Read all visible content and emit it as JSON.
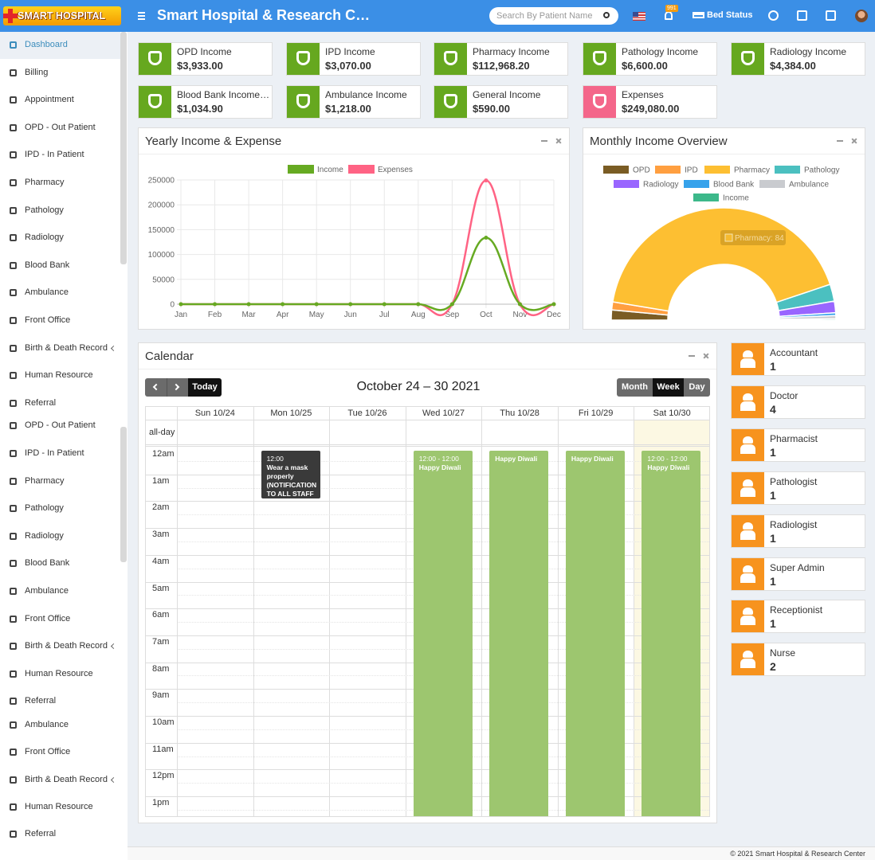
{
  "header": {
    "logo": "SMART HOSPITAL",
    "title": "Smart Hospital & Research Cen...",
    "search_placeholder": "Search By Patient Name",
    "notification_count": "991",
    "bed_status": "Bed Status"
  },
  "sidebar": {
    "active_item": 0,
    "items": [
      {
        "label": "Dashboard"
      },
      {
        "label": "Billing"
      },
      {
        "label": "Appointment"
      },
      {
        "label": "OPD - Out Patient"
      },
      {
        "label": "IPD - In Patient"
      },
      {
        "label": "Pharmacy"
      },
      {
        "label": "Pathology"
      },
      {
        "label": "Radiology"
      },
      {
        "label": "Blood Bank"
      },
      {
        "label": "Ambulance"
      },
      {
        "label": "Front Office"
      },
      {
        "label": "Birth & Death Record",
        "submenu": true
      },
      {
        "label": "Human Resource"
      },
      {
        "label": "Referral"
      },
      {
        "label": "OPD - Out Patient"
      },
      {
        "label": "IPD - In Patient"
      },
      {
        "label": "Pharmacy"
      },
      {
        "label": "Pathology"
      },
      {
        "label": "Radiology"
      },
      {
        "label": "Blood Bank"
      },
      {
        "label": "Ambulance"
      },
      {
        "label": "Front Office"
      },
      {
        "label": "Birth & Death Record",
        "submenu": true
      },
      {
        "label": "Human Resource"
      },
      {
        "label": "Referral"
      },
      {
        "label": "Ambulance"
      },
      {
        "label": "Front Office"
      },
      {
        "label": "Birth & Death Record",
        "submenu": true
      },
      {
        "label": "Human Resource"
      },
      {
        "label": "Referral"
      }
    ]
  },
  "cards": [
    {
      "label": "OPD Income",
      "value": "$3,933.00",
      "color": "#66a81f"
    },
    {
      "label": "IPD Income",
      "value": "$3,070.00",
      "color": "#66a81f"
    },
    {
      "label": "Pharmacy Income",
      "value": "$112,968.20",
      "color": "#66a81f"
    },
    {
      "label": "Pathology Income",
      "value": "$6,600.00",
      "color": "#66a81f"
    },
    {
      "label": "Radiology Income",
      "value": "$4,384.00",
      "color": "#66a81f"
    },
    {
      "label": "Blood Bank Income_...",
      "value": "$1,034.90",
      "color": "#66a81f"
    },
    {
      "label": "Ambulance Income",
      "value": "$1,218.00",
      "color": "#66a81f"
    },
    {
      "label": "General Income",
      "value": "$590.00",
      "color": "#66a81f"
    },
    {
      "label": "Expenses",
      "value": "$249,080.00",
      "color": "#f4668a"
    }
  ],
  "chart_data": [
    {
      "type": "line",
      "title": "Yearly Income & Expense",
      "categories": [
        "Jan",
        "Feb",
        "Mar",
        "Apr",
        "May",
        "Jun",
        "Jul",
        "Aug",
        "Sep",
        "Oct",
        "Nov",
        "Dec"
      ],
      "series": [
        {
          "name": "Income",
          "color": "#66aa22",
          "values": [
            0,
            0,
            0,
            0,
            0,
            0,
            0,
            0,
            0,
            133798.1,
            0,
            0
          ]
        },
        {
          "name": "Expenses",
          "color": "#ff6384",
          "values": [
            0,
            0,
            0,
            0,
            0,
            0,
            0,
            0,
            0,
            249080,
            0,
            0
          ]
        }
      ],
      "ylim": [
        0,
        250000
      ],
      "yticks": [
        0,
        50000,
        100000,
        150000,
        200000,
        250000
      ],
      "grid": true,
      "legend": "top"
    },
    {
      "type": "doughnut",
      "title": "Monthly Income Overview",
      "half": true,
      "legend": "top",
      "categories": [
        "OPD",
        "IPD",
        "Pharmacy",
        "Pathology",
        "Radiology",
        "Blood Bank",
        "Ambulance",
        "Income"
      ],
      "values": [
        2.9,
        2.3,
        84.4,
        4.9,
        3.3,
        0.8,
        0.9,
        0.4
      ],
      "colors": [
        "#7a5c24",
        "#ff9f40",
        "#fdbf32",
        "#4bc0c0",
        "#9966ff",
        "#36a2eb",
        "#c9cbcf",
        "#3cb88a"
      ],
      "tooltip": "Pharmacy: 84"
    }
  ],
  "calendar": {
    "title": "Calendar",
    "today": "Today",
    "range": "October 24 – 30 2021",
    "views": [
      "Month",
      "Week",
      "Day"
    ],
    "active_view": 1,
    "today_index": 6,
    "days": [
      "Sun 10/24",
      "Mon 10/25",
      "Tue 10/26",
      "Wed 10/27",
      "Thu 10/28",
      "Fri 10/29",
      "Sat 10/30"
    ],
    "all_day": "all-day",
    "hours": [
      "12am",
      "1am",
      "2am",
      "3am",
      "4am",
      "5am",
      "6am",
      "7am",
      "8am",
      "9am",
      "10am",
      "11am",
      "12pm",
      "1pm"
    ],
    "events": [
      {
        "day": 1,
        "time": "12:00",
        "title": "Wear a mask properly (NOTIFICATION TO ALL STAFF",
        "color": "#3a3a3a"
      },
      {
        "day": 3,
        "time": "12:00 - 12:00",
        "title": "Happy Diwali",
        "color": "#9dc66f"
      },
      {
        "day": 4,
        "title": "Happy Diwali",
        "color": "#9dc66f"
      },
      {
        "day": 5,
        "title": "Happy Diwali",
        "color": "#9dc66f"
      },
      {
        "day": 6,
        "time": "12:00 - 12:00",
        "title": "Happy Diwali",
        "color": "#9dc66f"
      }
    ]
  },
  "staff": [
    {
      "role": "Accountant",
      "count": "1"
    },
    {
      "role": "Doctor",
      "count": "4"
    },
    {
      "role": "Pharmacist",
      "count": "1"
    },
    {
      "role": "Pathologist",
      "count": "1"
    },
    {
      "role": "Radiologist",
      "count": "1"
    },
    {
      "role": "Super Admin",
      "count": "1"
    },
    {
      "role": "Receptionist",
      "count": "1"
    },
    {
      "role": "Nurse",
      "count": "2"
    }
  ],
  "footer": "© 2021 Smart Hospital & Research Center"
}
